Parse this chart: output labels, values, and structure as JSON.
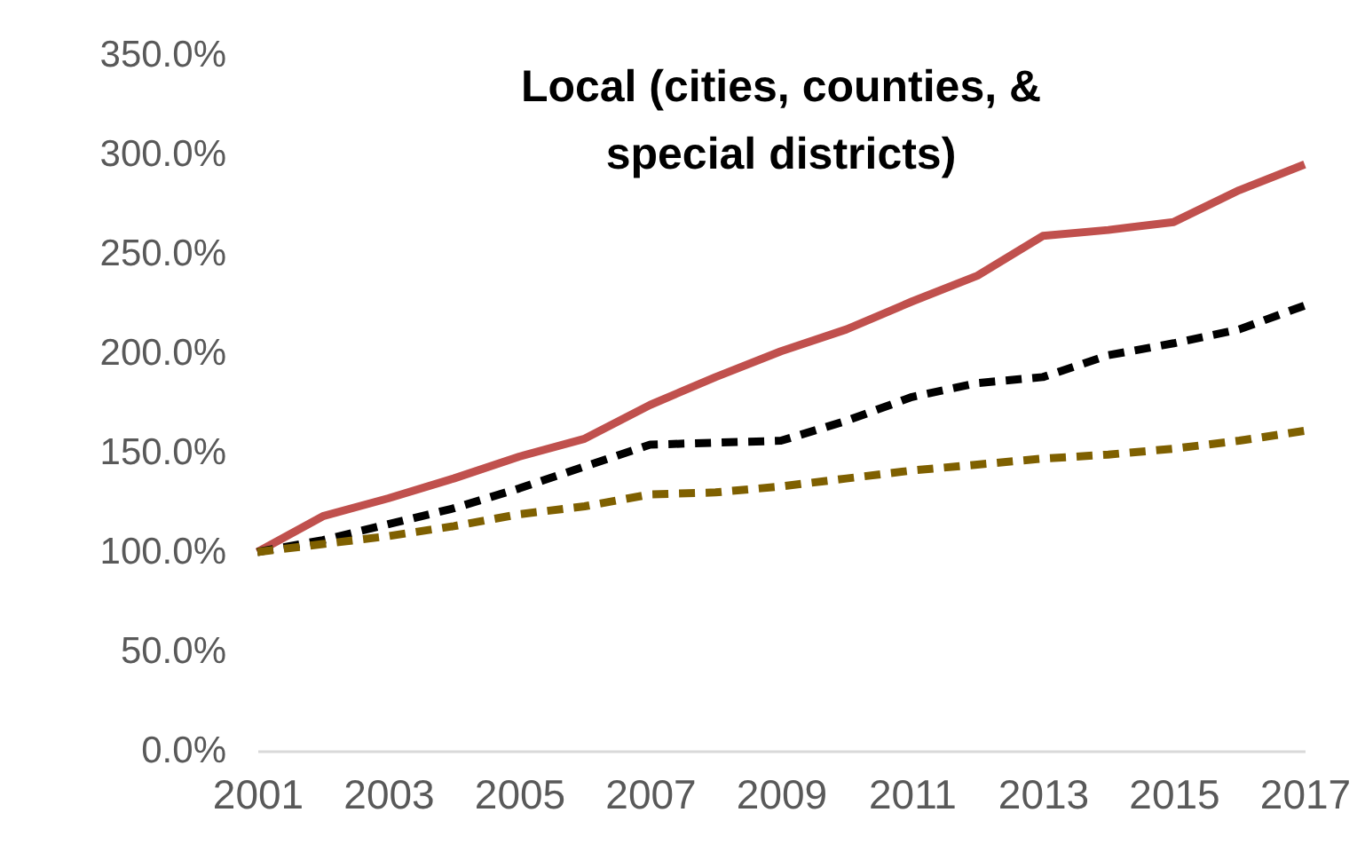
{
  "chart_data": {
    "type": "line",
    "title": "Local (cities, counties, & special districts)",
    "categories": [
      "2001",
      null,
      "2003",
      null,
      "2005",
      null,
      "2007",
      null,
      "2009",
      null,
      "2011",
      null,
      "2013",
      null,
      "2015",
      null,
      "2017"
    ],
    "series": [
      {
        "color": "#c0504d",
        "line_style": "solid",
        "values": [
          100,
          118,
          127,
          137,
          148,
          157,
          174,
          188,
          201,
          212,
          226,
          239,
          259,
          262,
          266,
          282,
          295
        ]
      },
      {
        "color": "#000000",
        "line_style": "dashed",
        "values": [
          100,
          106,
          114,
          122,
          132,
          143,
          154,
          155,
          156,
          166,
          178,
          185,
          188,
          199,
          205,
          212,
          224
        ]
      },
      {
        "color": "#7f6000",
        "line_style": "dashed",
        "values": [
          100,
          104,
          108,
          113,
          119,
          123,
          129,
          130,
          133,
          137,
          141,
          144,
          147,
          149,
          152,
          156,
          161
        ]
      }
    ],
    "ylim": [
      0,
      350
    ],
    "yticks": [
      {
        "value": 0,
        "label": "0.0%"
      },
      {
        "value": 50,
        "label": "50.0%"
      },
      {
        "value": 100,
        "label": "100.0%"
      },
      {
        "value": 150,
        "label": "150.0%"
      },
      {
        "value": 200,
        "label": "200.0%"
      },
      {
        "value": 250,
        "label": "250.0%"
      },
      {
        "value": 300,
        "label": "300.0%"
      },
      {
        "value": 350,
        "label": "350.0%"
      }
    ],
    "grid": false,
    "legend": false,
    "marker": "none"
  }
}
